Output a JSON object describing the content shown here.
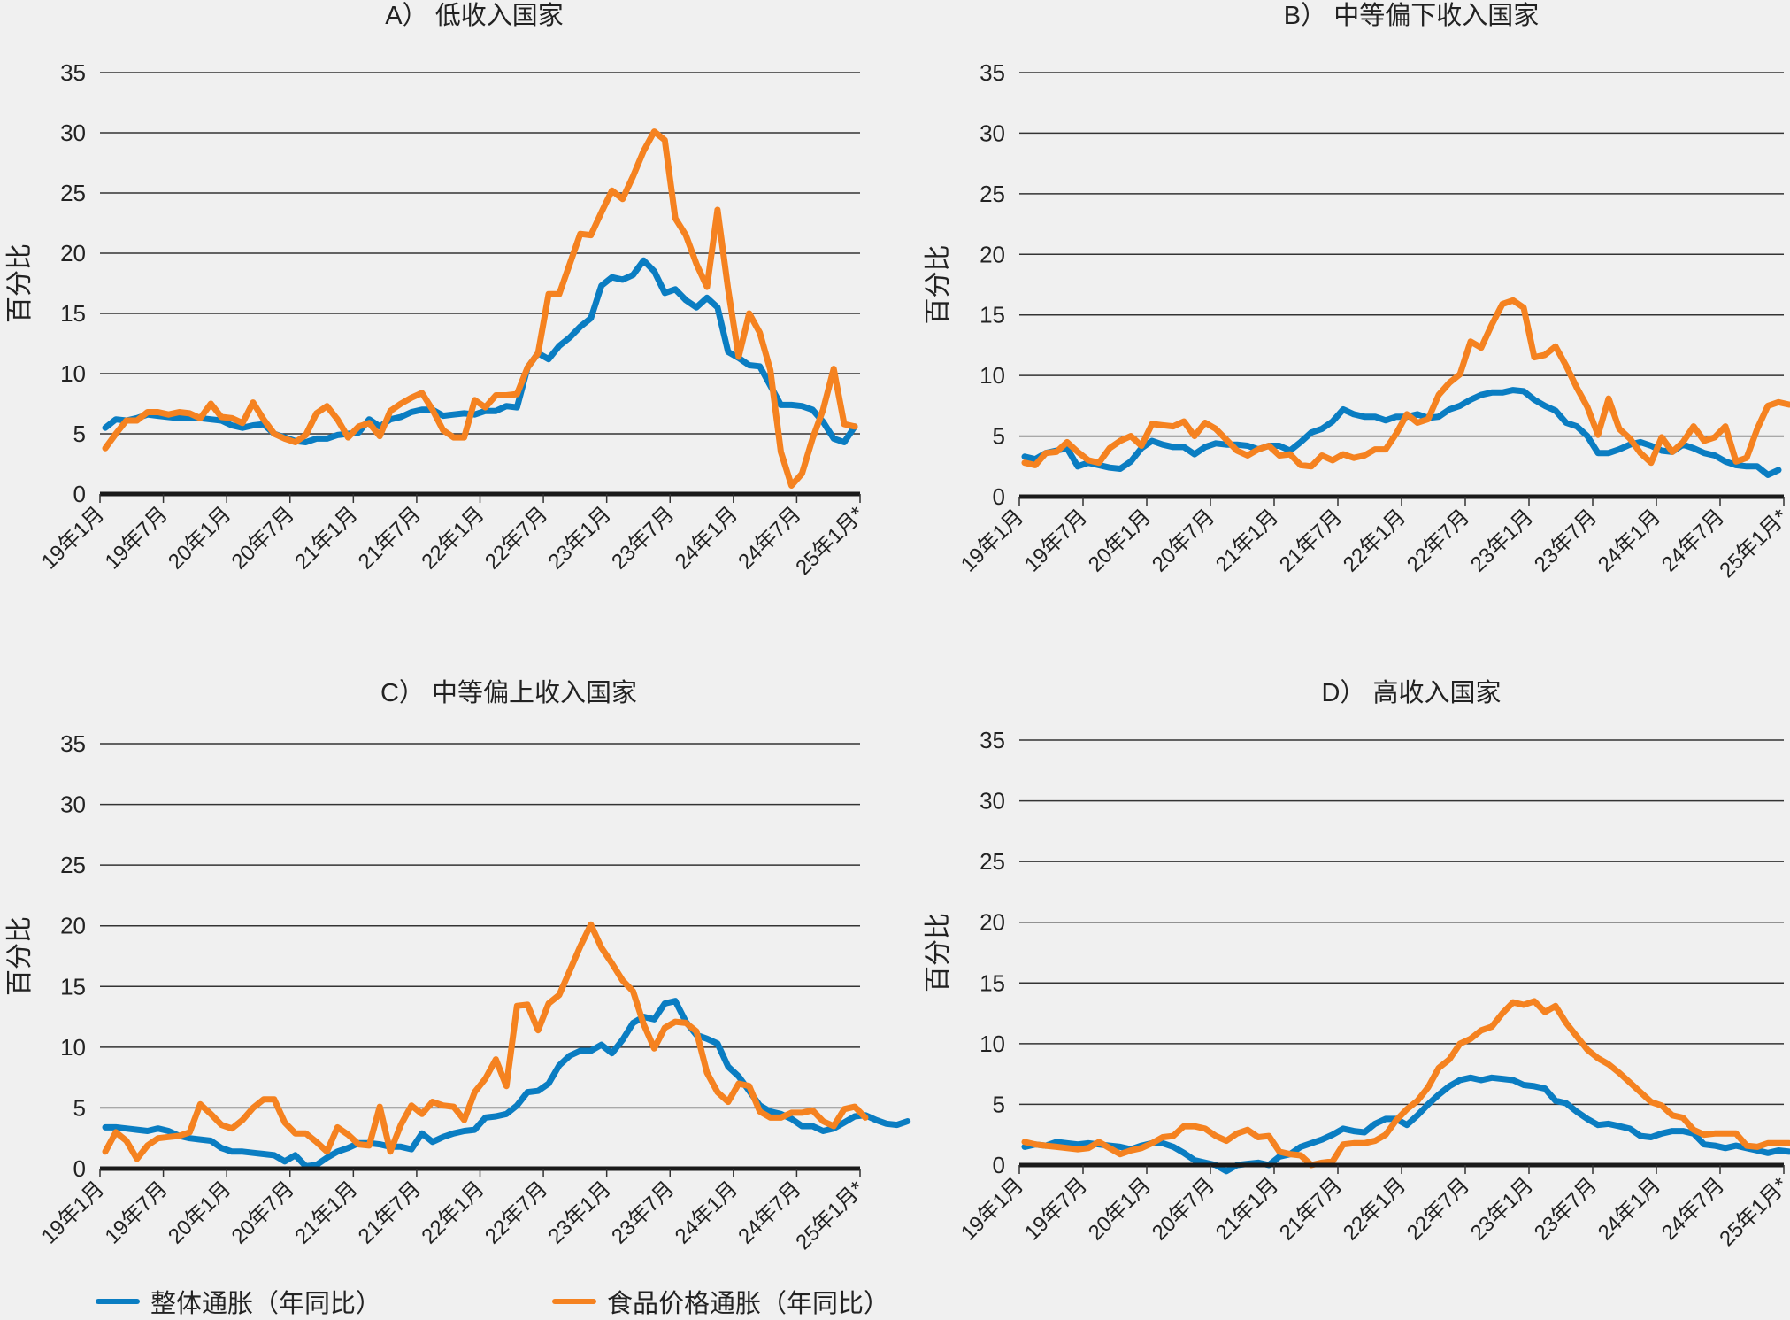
{
  "colors": {
    "headline": "#0a7dc2",
    "food": "#f58220",
    "background": "#f0f0f0",
    "grid": "#333333"
  },
  "legend": {
    "headline_label": "整体通胀（年同比）",
    "food_label": "食品价格通胀（年同比）"
  },
  "chart_data": [
    {
      "type": "line",
      "title": "A） 低收入国家",
      "ylabel": "百分比",
      "xlabel": "",
      "ylim": [
        0,
        35
      ],
      "yticks": [
        0,
        5,
        10,
        15,
        20,
        25,
        30,
        35
      ],
      "xtick_labels": [
        "19年1月",
        "19年7月",
        "20年1月",
        "20年7月",
        "21年1月",
        "21年7月",
        "22年1月",
        "22年7月",
        "23年1月",
        "23年7月",
        "24年1月",
        "24年7月",
        "25年1月*"
      ],
      "x_start": "2019-01",
      "x_step": "month",
      "grid": true,
      "series": [
        {
          "name": "整体通胀（年同比）",
          "values": [
            5.5,
            6.2,
            6.1,
            6.3,
            6.6,
            6.5,
            6.4,
            6.3,
            6.3,
            6.3,
            6.2,
            6.1,
            5.7,
            5.5,
            5.7,
            5.8,
            5.0,
            4.7,
            4.4,
            4.3,
            4.6,
            4.6,
            4.9,
            5.0,
            5.1,
            6.2,
            5.6,
            6.2,
            6.4,
            6.8,
            7.0,
            7.0,
            6.5,
            6.6,
            6.7,
            6.6,
            6.9,
            6.9,
            7.3,
            7.2,
            10.5,
            11.7,
            11.2,
            12.3,
            13.0,
            13.9,
            14.6,
            17.3,
            18.0,
            17.8,
            18.2,
            19.4,
            18.5,
            16.7,
            17.0,
            16.1,
            15.5,
            16.3,
            15.5,
            11.8,
            11.3,
            10.7,
            10.6,
            9.0,
            7.4,
            7.4,
            7.3,
            7.0,
            6.0,
            4.6,
            4.3,
            5.6
          ]
        },
        {
          "name": "食品价格通胀（年同比）",
          "values": [
            3.8,
            5.0,
            6.1,
            6.1,
            6.8,
            6.8,
            6.6,
            6.8,
            6.7,
            6.3,
            7.5,
            6.4,
            6.3,
            5.9,
            7.6,
            6.2,
            5.0,
            4.6,
            4.3,
            4.9,
            6.7,
            7.3,
            6.2,
            4.7,
            5.6,
            5.9,
            4.8,
            6.9,
            7.5,
            8.0,
            8.4,
            7.0,
            5.3,
            4.7,
            4.7,
            7.8,
            7.2,
            8.2,
            8.2,
            8.3,
            10.5,
            11.7,
            16.6,
            16.6,
            19.1,
            21.6,
            21.5,
            23.4,
            25.2,
            24.5,
            26.4,
            28.5,
            30.1,
            29.4,
            22.9,
            21.5,
            19.1,
            17.2,
            23.6,
            17.0,
            11.4,
            15.0,
            13.4,
            10.3,
            3.5,
            0.7,
            1.7,
            4.6,
            7.0,
            10.4,
            5.8,
            5.6
          ]
        }
      ]
    },
    {
      "type": "line",
      "title": "B） 中等偏下收入国家",
      "ylabel": "百分比",
      "xlabel": "",
      "ylim": [
        0,
        35
      ],
      "yticks": [
        0,
        5,
        10,
        15,
        20,
        25,
        30,
        35
      ],
      "xtick_labels": [
        "19年1月",
        "19年7月",
        "20年1月",
        "20年7月",
        "21年1月",
        "21年7月",
        "22年1月",
        "22年7月",
        "23年1月",
        "23年7月",
        "24年1月",
        "24年7月",
        "25年1月*"
      ],
      "x_start": "2019-01",
      "x_step": "month",
      "grid": true,
      "series": [
        {
          "name": "整体通胀（年同比）",
          "values": [
            3.3,
            3.1,
            3.6,
            3.8,
            4.0,
            2.5,
            2.8,
            2.6,
            2.4,
            2.3,
            2.9,
            4.0,
            4.6,
            4.3,
            4.1,
            4.1,
            3.5,
            4.1,
            4.4,
            4.3,
            4.3,
            4.2,
            3.9,
            4.2,
            4.2,
            3.8,
            4.5,
            5.3,
            5.6,
            6.2,
            7.2,
            6.8,
            6.6,
            6.6,
            6.3,
            6.6,
            6.6,
            6.8,
            6.5,
            6.6,
            7.2,
            7.5,
            8.0,
            8.4,
            8.6,
            8.6,
            8.8,
            8.7,
            8.0,
            7.5,
            7.1,
            6.1,
            5.8,
            5.0,
            3.6,
            3.6,
            3.9,
            4.3,
            4.5,
            4.2,
            3.8,
            3.7,
            4.3,
            4.0,
            3.6,
            3.4,
            2.9,
            2.6,
            2.5,
            2.5,
            1.8,
            2.2
          ]
        },
        {
          "name": "食品价格通胀（年同比）",
          "values": [
            2.8,
            2.6,
            3.6,
            3.7,
            4.5,
            3.7,
            3.0,
            2.8,
            4.0,
            4.6,
            5.0,
            4.2,
            6.0,
            5.9,
            5.8,
            6.2,
            5.0,
            6.1,
            5.6,
            4.7,
            3.8,
            3.4,
            3.9,
            4.2,
            3.4,
            3.5,
            2.6,
            2.5,
            3.4,
            3.0,
            3.5,
            3.2,
            3.4,
            3.9,
            3.9,
            5.2,
            6.8,
            6.1,
            6.4,
            8.4,
            9.4,
            10.1,
            12.8,
            12.3,
            14.2,
            15.9,
            16.2,
            15.6,
            11.5,
            11.7,
            12.4,
            10.8,
            9.0,
            7.4,
            5.1,
            8.1,
            5.6,
            4.8,
            3.6,
            2.8,
            4.9,
            3.7,
            4.5,
            5.8,
            4.6,
            4.9,
            5.8,
            2.9,
            3.2,
            5.6,
            7.5,
            7.8,
            7.6
          ]
        }
      ]
    },
    {
      "type": "line",
      "title": "C） 中等偏上收入国家",
      "ylabel": "百分比",
      "xlabel": "",
      "ylim": [
        0,
        35
      ],
      "yticks": [
        0,
        5,
        10,
        15,
        20,
        25,
        30,
        35
      ],
      "xtick_labels": [
        "19年1月",
        "19年7月",
        "20年1月",
        "20年7月",
        "21年1月",
        "21年7月",
        "22年1月",
        "22年7月",
        "23年1月",
        "23年7月",
        "24年1月",
        "24年7月",
        "25年1月*"
      ],
      "x_start": "2019-01",
      "x_step": "month",
      "grid": true,
      "series": [
        {
          "name": "整体通胀（年同比）",
          "values": [
            3.4,
            3.4,
            3.3,
            3.2,
            3.1,
            3.3,
            3.1,
            2.7,
            2.5,
            2.4,
            2.3,
            1.7,
            1.4,
            1.4,
            1.3,
            1.2,
            1.1,
            0.6,
            1.1,
            0.2,
            0.3,
            0.9,
            1.4,
            1.7,
            2.1,
            2.1,
            2.0,
            1.8,
            1.8,
            1.6,
            2.9,
            2.2,
            2.6,
            2.9,
            3.1,
            3.2,
            4.2,
            4.3,
            4.5,
            5.2,
            6.3,
            6.4,
            7.0,
            8.5,
            9.3,
            9.7,
            9.7,
            10.2,
            9.5,
            10.6,
            12.0,
            12.5,
            12.3,
            13.6,
            13.8,
            12.1,
            11.0,
            10.7,
            10.3,
            8.4,
            7.6,
            6.4,
            5.2,
            4.7,
            4.5,
            4.1,
            3.5,
            3.5,
            3.1,
            3.3,
            3.8,
            4.3,
            4.4,
            4.0,
            3.7,
            3.6,
            3.9
          ]
        },
        {
          "name": "食品价格通胀（年同比）",
          "values": [
            1.4,
            3.0,
            2.3,
            0.8,
            1.9,
            2.5,
            2.6,
            2.7,
            3.0,
            5.3,
            4.5,
            3.6,
            3.3,
            4.0,
            5.0,
            5.7,
            5.7,
            3.8,
            2.9,
            2.9,
            2.2,
            1.4,
            3.4,
            2.8,
            2.0,
            1.9,
            5.1,
            1.4,
            3.6,
            5.2,
            4.5,
            5.5,
            5.2,
            5.1,
            4.0,
            6.3,
            7.4,
            9.0,
            6.8,
            13.4,
            13.5,
            11.4,
            13.6,
            14.3,
            16.3,
            18.3,
            20.1,
            18.2,
            16.9,
            15.5,
            14.6,
            11.9,
            9.9,
            11.6,
            12.1,
            12.0,
            11.3,
            7.9,
            6.3,
            5.5,
            7.0,
            6.8,
            4.7,
            4.2,
            4.2,
            4.6,
            4.6,
            4.8,
            3.9,
            3.5,
            4.9,
            5.1,
            4.2
          ]
        }
      ]
    },
    {
      "type": "line",
      "title": "D） 高收入国家",
      "ylabel": "百分比",
      "xlabel": "",
      "ylim": [
        0,
        35
      ],
      "yticks": [
        0,
        5,
        10,
        15,
        20,
        25,
        30,
        35
      ],
      "xtick_labels": [
        "19年1月",
        "19年7月",
        "20年1月",
        "20年7月",
        "21年1月",
        "21年7月",
        "22年1月",
        "22年7月",
        "23年1月",
        "23年7月",
        "24年1月",
        "24年7月",
        "25年1月*"
      ],
      "x_start": "2019-01",
      "x_step": "month",
      "grid": true,
      "series": [
        {
          "name": "整体通胀（年同比）",
          "values": [
            1.5,
            1.7,
            1.6,
            1.9,
            1.8,
            1.7,
            1.8,
            1.7,
            1.6,
            1.5,
            1.3,
            1.6,
            1.8,
            1.8,
            1.5,
            1.0,
            0.4,
            0.2,
            0.0,
            -0.5,
            0.0,
            0.1,
            0.2,
            0.0,
            0.7,
            0.9,
            1.5,
            1.8,
            2.1,
            2.5,
            3.0,
            2.8,
            2.7,
            3.4,
            3.8,
            3.8,
            3.3,
            4.1,
            5.0,
            5.8,
            6.5,
            7.0,
            7.2,
            7.0,
            7.2,
            7.1,
            7.0,
            6.6,
            6.5,
            6.3,
            5.3,
            5.1,
            4.4,
            3.8,
            3.3,
            3.4,
            3.2,
            3.0,
            2.4,
            2.3,
            2.6,
            2.8,
            2.8,
            2.6,
            1.7,
            1.6,
            1.4,
            1.6,
            1.4,
            1.2,
            1.0,
            1.2,
            1.1
          ]
        },
        {
          "name": "食品价格通胀（年同比）",
          "values": [
            1.9,
            1.7,
            1.6,
            1.5,
            1.4,
            1.3,
            1.4,
            1.9,
            1.4,
            0.9,
            1.2,
            1.4,
            1.8,
            2.3,
            2.4,
            3.2,
            3.2,
            3.0,
            2.4,
            2.0,
            2.6,
            2.9,
            2.3,
            2.4,
            1.1,
            0.9,
            0.8,
            0.0,
            0.2,
            0.3,
            1.7,
            1.8,
            1.8,
            2.0,
            2.5,
            3.7,
            4.6,
            5.3,
            6.4,
            8.0,
            8.7,
            10.0,
            10.4,
            11.1,
            11.4,
            12.5,
            13.4,
            13.2,
            13.5,
            12.6,
            13.1,
            11.7,
            10.6,
            9.5,
            8.8,
            8.3,
            7.6,
            6.8,
            6.0,
            5.2,
            4.9,
            4.1,
            3.9,
            2.9,
            2.5,
            2.6,
            2.6,
            2.6,
            1.6,
            1.5,
            1.8,
            1.8,
            1.8
          ]
        }
      ]
    }
  ]
}
